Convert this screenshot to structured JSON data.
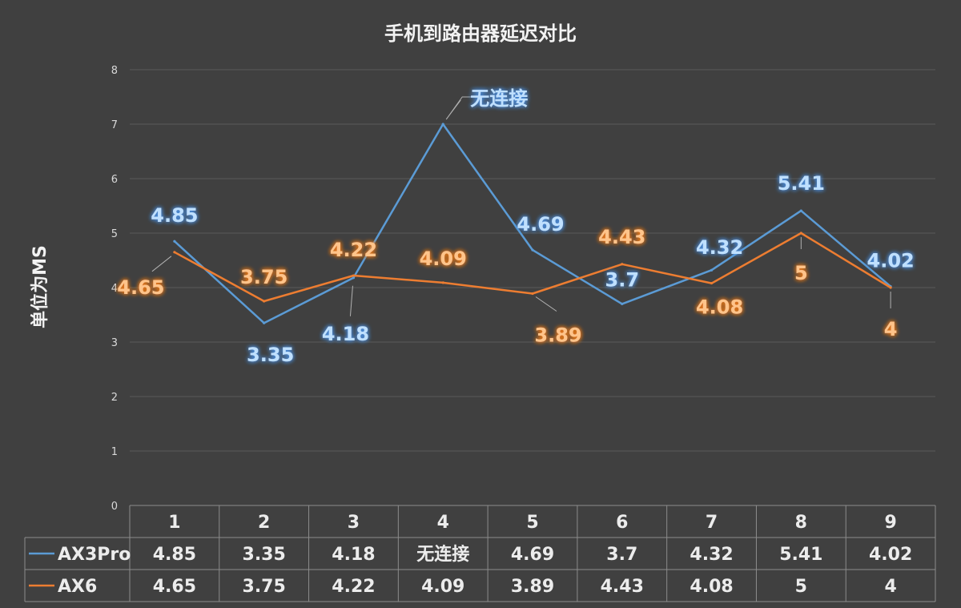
{
  "chart_data": {
    "type": "line",
    "title": "手机到路由器延迟对比",
    "ylabel": "单位为MS",
    "ylim": [
      0,
      8
    ],
    "yticks": [
      "0",
      "1",
      "2",
      "3",
      "4",
      "5",
      "6",
      "7",
      "8"
    ],
    "categories": [
      "1",
      "2",
      "3",
      "4",
      "5",
      "6",
      "7",
      "8",
      "9"
    ],
    "grid": true,
    "legend": "data-table-left",
    "series": [
      {
        "name": "AX3Pro",
        "color": "#5b9bd5",
        "values": [
          4.85,
          3.35,
          4.18,
          7,
          4.69,
          3.7,
          4.32,
          5.41,
          4.02
        ],
        "labels": [
          "4.85",
          "3.35",
          "4.18",
          "无连接",
          "4.69",
          "3.7",
          "4.32",
          "5.41",
          "4.02"
        ]
      },
      {
        "name": "AX6",
        "color": "#ed7d31",
        "values": [
          4.65,
          3.75,
          4.22,
          4.09,
          3.89,
          4.43,
          4.08,
          5,
          4
        ],
        "labels": [
          "4.65",
          "3.75",
          "4.22",
          "4.09",
          "3.89",
          "4.43",
          "4.08",
          "5",
          "4"
        ]
      }
    ]
  }
}
